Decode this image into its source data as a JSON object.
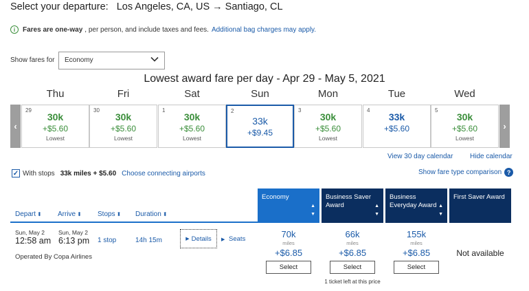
{
  "header": {
    "title_label": "Select your departure:",
    "route": "Los Angeles, CA, US → Santiago, CL"
  },
  "info": {
    "icon": "info-circle-icon",
    "bold": "Fares are one-way",
    "text": ", per person, and include taxes and fees.",
    "link": "Additional bag charges may apply."
  },
  "fare_filter": {
    "label": "Show fares for",
    "selected": "Economy"
  },
  "calendar": {
    "title": "Lowest award fare per day - Apr 29 - May 5, 2021",
    "prev_arrow": "‹",
    "next_arrow": "›",
    "days": [
      {
        "dow": "Thu",
        "date": "29",
        "miles": "30k",
        "tax": "+$5.60",
        "note": "Lowest"
      },
      {
        "dow": "Fri",
        "date": "30",
        "miles": "30k",
        "tax": "+$5.60",
        "note": "Lowest"
      },
      {
        "dow": "Sat",
        "date": "1",
        "miles": "30k",
        "tax": "+$5.60",
        "note": "Lowest"
      },
      {
        "dow": "Sun",
        "date": "2",
        "miles": "33k",
        "tax": "+$9.45",
        "note": ""
      },
      {
        "dow": "Mon",
        "date": "3",
        "miles": "30k",
        "tax": "+$5.60",
        "note": "Lowest"
      },
      {
        "dow": "Tue",
        "date": "4",
        "miles": "33k",
        "tax": "+$5.60",
        "note": ""
      },
      {
        "dow": "Wed",
        "date": "5",
        "miles": "30k",
        "tax": "+$5.60",
        "note": "Lowest"
      }
    ],
    "view30": "View 30 day calendar",
    "hide": "Hide calendar",
    "fare_compare": "Show fare type comparison",
    "help_icon": "?"
  },
  "stops": {
    "check": "✓",
    "label": "With stops",
    "price": "33k miles + $5.60",
    "link": "Choose connecting airports"
  },
  "cabins": [
    {
      "label": "Economy"
    },
    {
      "label": "Business Saver Award"
    },
    {
      "label": "Business Everyday Award"
    },
    {
      "label": "First Saver Award"
    }
  ],
  "columns": {
    "depart": "Depart",
    "arrive": "Arrive",
    "stops": "Stops",
    "duration": "Duration",
    "sort": "⬍"
  },
  "flight": {
    "depart_date": "Sun, May 2",
    "depart_time": "12:58 am",
    "arrive_date": "Sun, May 2",
    "arrive_time": "6:13 pm",
    "stops": "1 stop",
    "duration": "14h 15m",
    "details": "Details",
    "seats": "Seats",
    "operated": "Operated By Copa Airlines",
    "fares": [
      {
        "miles": "70k",
        "unit": "miles",
        "tax": "+$6.85",
        "select": "Select"
      },
      {
        "miles": "66k",
        "unit": "miles",
        "tax": "+$6.85",
        "select": "Select"
      },
      {
        "miles": "155k",
        "unit": "miles",
        "tax": "+$6.85",
        "select": "Select"
      }
    ],
    "not_available": "Not available",
    "tickets_left": "1 ticket left at this price"
  },
  "colors": {
    "accent_blue": "#1a5aa8",
    "economy_header": "#1a6fc9",
    "dark_header": "#0b2e5f",
    "green": "#3a8e3a"
  }
}
